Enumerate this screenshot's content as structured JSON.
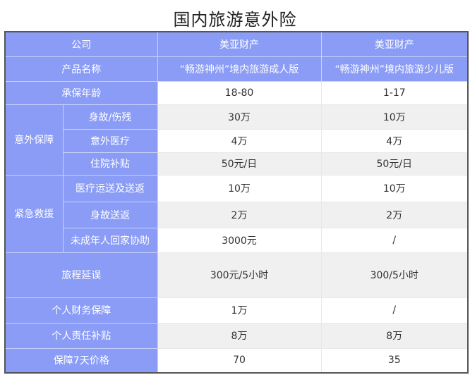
{
  "title": "国内旅游意外险",
  "header": {
    "company_label": "公司",
    "companies": [
      "美亚财产",
      "美亚财产"
    ],
    "product_label": "产品名称",
    "products": [
      "“畅游神州”境内旅游成人版",
      "“畅游神州”境内旅游少儿版"
    ]
  },
  "rows": {
    "age": {
      "label": "承保年龄",
      "values": [
        "18-80",
        "1-17"
      ]
    },
    "accident_group": "意外保障",
    "death": {
      "label": "身故/伤残",
      "values": [
        "30万",
        "10万"
      ]
    },
    "medical": {
      "label": "意外医疗",
      "values": [
        "4万",
        "4万"
      ]
    },
    "hospital": {
      "label": "住院补贴",
      "values": [
        "50元/日",
        "50元/日"
      ]
    },
    "rescue_group": "紧急救援",
    "transport": {
      "label": "医疗运送及送返",
      "values": [
        "10万",
        "10万"
      ]
    },
    "repatriation": {
      "label": "身故送返",
      "values": [
        "2万",
        "2万"
      ]
    },
    "minor": {
      "label": "未成年人回家协助",
      "values": [
        "3000元",
        "/"
      ]
    },
    "delay": {
      "label": "旅程延误",
      "values": [
        "300元/5小时",
        "300/5小时"
      ]
    },
    "property": {
      "label": "个人财务保障",
      "values": [
        "1万",
        "/"
      ]
    },
    "liability": {
      "label": "个人责任补贴",
      "values": [
        "8万",
        "8万"
      ]
    },
    "price": {
      "label": "保障7天价格",
      "values": [
        "70",
        "35"
      ]
    }
  },
  "colors": {
    "header_bg": "#8a9cf6",
    "stripe": "#f0f0f0"
  }
}
